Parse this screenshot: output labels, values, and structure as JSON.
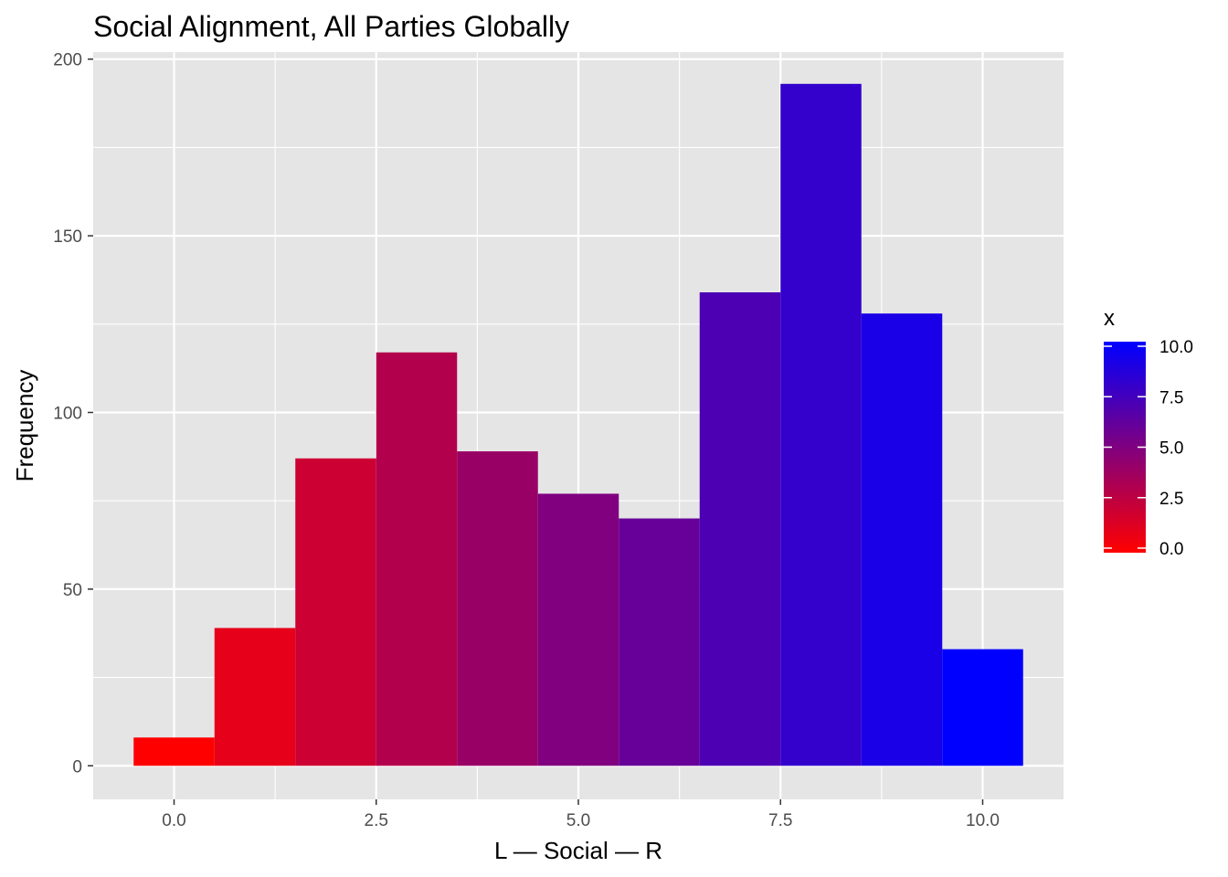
{
  "chart_data": {
    "type": "bar",
    "subtype": "histogram",
    "title": "Social Alignment, All Parties Globally",
    "xlabel": "L — Social — R",
    "ylabel": "Frequency",
    "xlim": [
      -1.0,
      11.0
    ],
    "ylim": [
      -9.5,
      202
    ],
    "x_ticks": [
      0,
      2.5,
      5,
      7.5,
      10
    ],
    "x_tick_labels": [
      "0.0",
      "2.5",
      "5.0",
      "7.5",
      "10.0"
    ],
    "y_ticks": [
      0,
      50,
      100,
      150,
      200
    ],
    "y_tick_labels": [
      "0",
      "50",
      "100",
      "150",
      "200"
    ],
    "bin_width": 1,
    "bins": [
      {
        "center": 0,
        "value": 8
      },
      {
        "center": 1,
        "value": 39
      },
      {
        "center": 2,
        "value": 87
      },
      {
        "center": 3,
        "value": 117
      },
      {
        "center": 4,
        "value": 89
      },
      {
        "center": 5,
        "value": 77
      },
      {
        "center": 6,
        "value": 70
      },
      {
        "center": 7,
        "value": 134
      },
      {
        "center": 8,
        "value": 193
      },
      {
        "center": 9,
        "value": 128
      },
      {
        "center": 10,
        "value": 33
      }
    ],
    "grid": true,
    "background": "#e5e5e5",
    "color_scale": {
      "low": "#ff0000",
      "high": "#0000ff",
      "domain": [
        0,
        10
      ],
      "legend_title": "x",
      "legend_ticks": [
        0,
        2.5,
        5,
        7.5,
        10
      ],
      "legend_tick_labels": [
        "0.0",
        "2.5",
        "5.0",
        "7.5",
        "10.0"
      ],
      "legend_position": "right"
    }
  }
}
